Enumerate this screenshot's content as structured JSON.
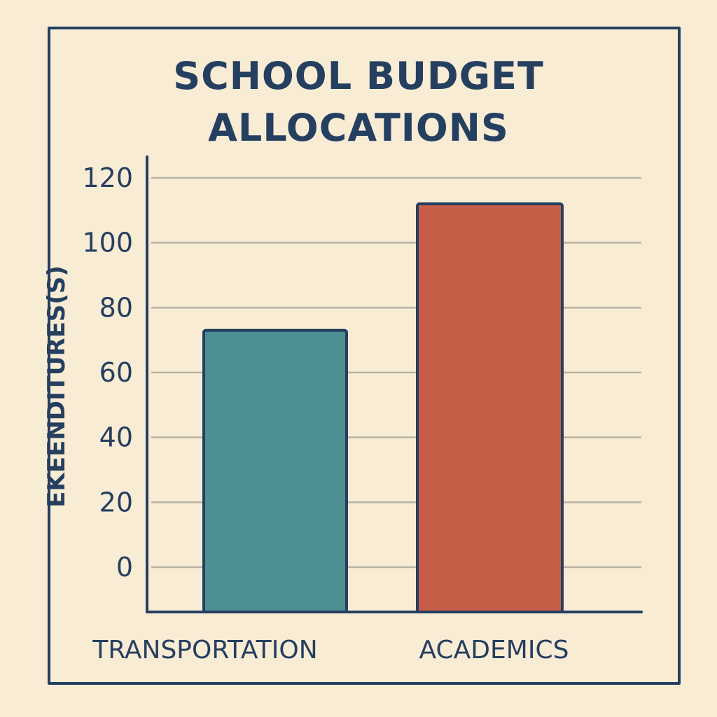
{
  "chart_data": {
    "type": "bar",
    "title_lines": [
      "SCHOOL BUDGET",
      "ALLOCATIONS"
    ],
    "ylabel": "EKEENDITURES(S)",
    "xlabel": "",
    "categories": [
      "TRANSPORTATION",
      "ACADEMICS"
    ],
    "values": [
      73,
      112
    ],
    "colors": [
      "#4e8f91",
      "#c65e47"
    ],
    "yticks": [
      0,
      20,
      40,
      60,
      80,
      100,
      120
    ],
    "ylim": [
      0,
      120
    ],
    "grid": true,
    "legend": "none"
  },
  "style": {
    "ink": "#253f60",
    "background": "#f8ecd4",
    "gridline": "#b7b3a6"
  }
}
